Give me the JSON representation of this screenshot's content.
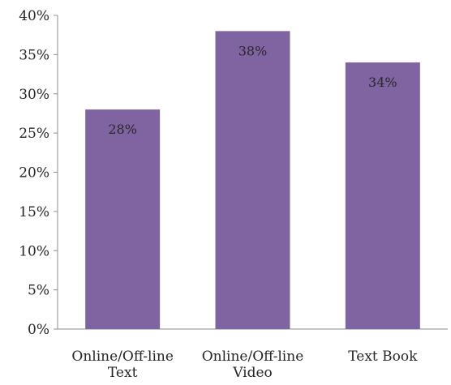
{
  "chart_data": {
    "type": "bar",
    "categories": [
      [
        "Online/Off-line",
        "Text"
      ],
      [
        "Online/Off-line",
        "Video"
      ],
      [
        "Text Book"
      ]
    ],
    "values": [
      28,
      38,
      34
    ],
    "data_labels": [
      "28%",
      "38%",
      "34%"
    ],
    "yticks": [
      "0%",
      "5%",
      "10%",
      "15%",
      "20%",
      "25%",
      "30%",
      "35%",
      "40%"
    ],
    "ylim": [
      0,
      40
    ],
    "y_unit": "%",
    "title": "",
    "xlabel": "",
    "ylabel": "",
    "grid": false,
    "legend": "none",
    "colors": {
      "bar": "#8064a2",
      "axis": "#8c8c8c",
      "text": "#262626",
      "title_fragment": "#c0007a"
    }
  }
}
